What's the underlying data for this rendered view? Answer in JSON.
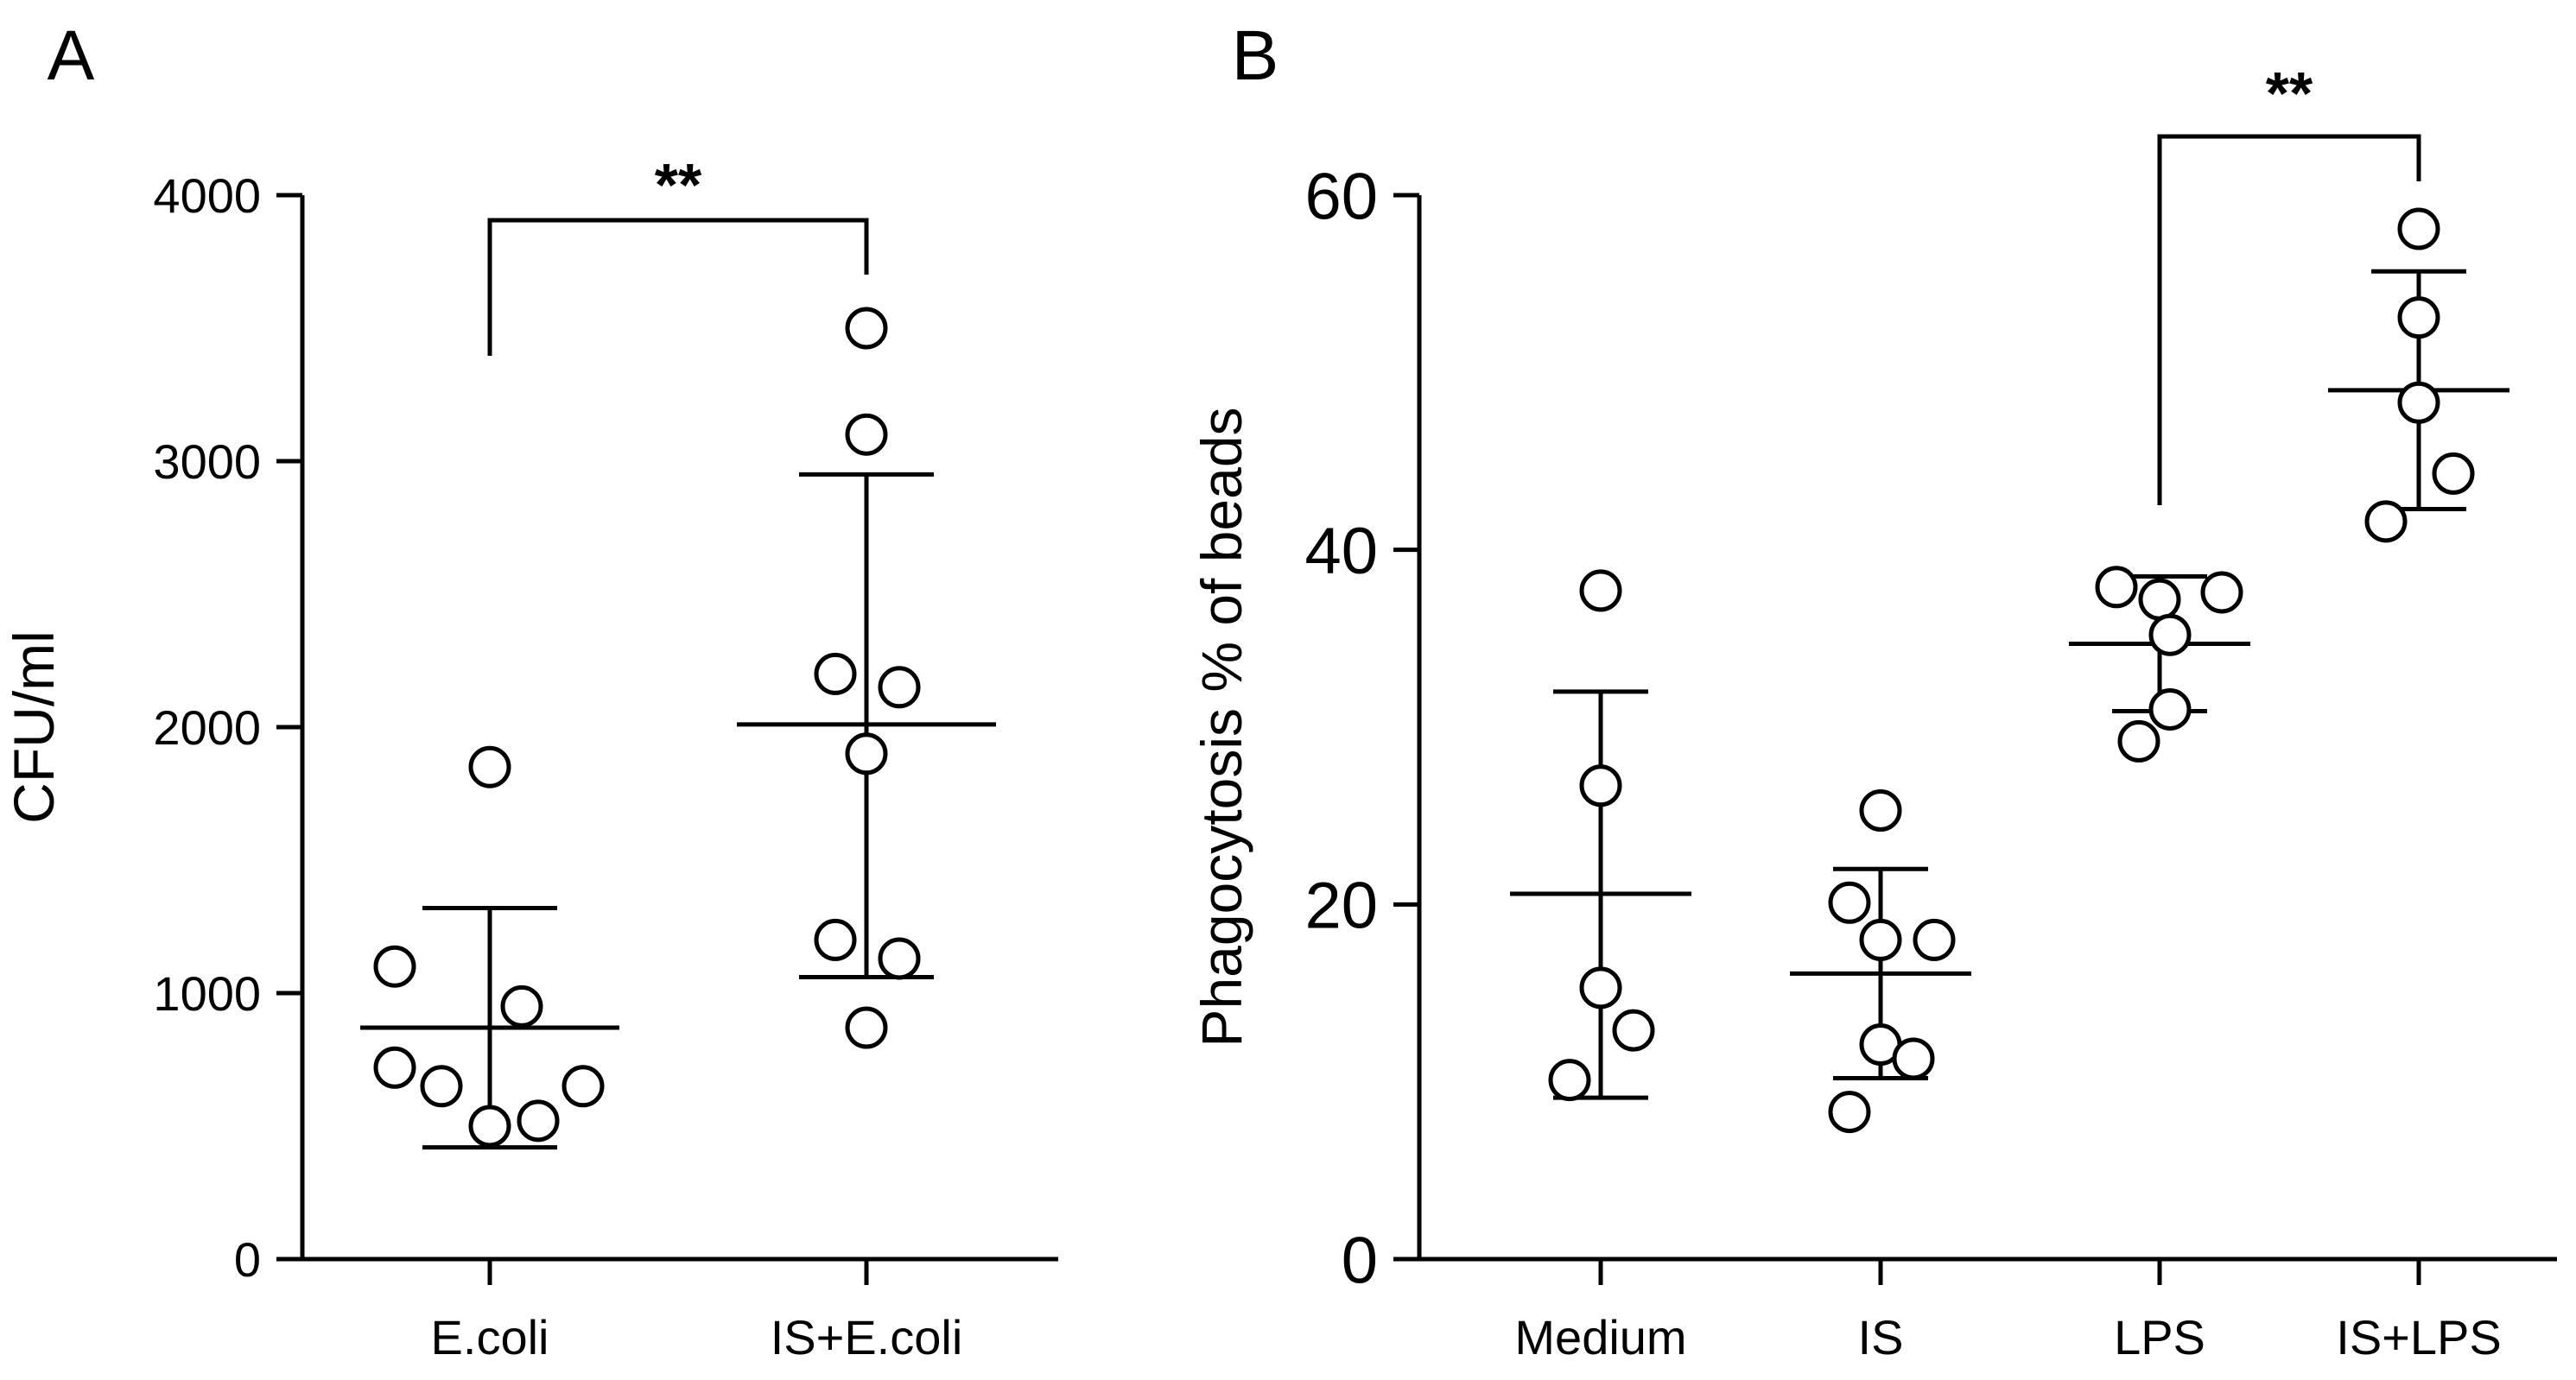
{
  "chart_data": [
    {
      "type": "scatter",
      "panel_label": "A",
      "title": "",
      "xlabel": "",
      "ylabel": "CFU/ml",
      "ylim": [
        0,
        4000
      ],
      "yticks": [
        "0",
        "1000",
        "2000",
        "3000",
        "4000"
      ],
      "grid": false,
      "categories": [
        "E.coli",
        "IS+E.coli"
      ],
      "groups": [
        {
          "name": "E.coli",
          "points": [
            1850,
            1100,
            950,
            720,
            650,
            650,
            500,
            520
          ],
          "mean": 870,
          "sd_low": 420,
          "sd_high": 1320
        },
        {
          "name": "IS+E.coli",
          "points": [
            3500,
            3100,
            2200,
            2150,
            1900,
            1200,
            1130,
            870
          ],
          "mean": 2010,
          "sd_low": 1060,
          "sd_high": 2950
        }
      ],
      "significance": [
        {
          "from": "E.coli",
          "to": "IS+E.coli",
          "label": "**"
        }
      ]
    },
    {
      "type": "scatter",
      "panel_label": "B",
      "title": "",
      "xlabel": "",
      "ylabel": "Phagocytosis % of beads",
      "ylim": [
        0,
        60
      ],
      "yticks": [
        "0",
        "20",
        "40",
        "60"
      ],
      "grid": false,
      "categories": [
        "Medium",
        "IS",
        "LPS",
        "IS+LPS"
      ],
      "groups": [
        {
          "name": "Medium",
          "points": [
            37.7,
            26.7,
            15.3,
            12.9,
            10.1
          ],
          "mean": 20.6,
          "sd_low": 9.1,
          "sd_high": 32.0
        },
        {
          "name": "IS",
          "points": [
            25.3,
            20.1,
            18.0,
            18.0,
            12.1,
            11.3,
            8.3
          ],
          "mean": 16.1,
          "sd_low": 10.2,
          "sd_high": 22.0
        },
        {
          "name": "LPS",
          "points": [
            37.9,
            37.2,
            37.6,
            35.2,
            31.0,
            29.2
          ],
          "mean": 34.7,
          "sd_low": 30.9,
          "sd_high": 38.5
        },
        {
          "name": "IS+LPS",
          "points": [
            58.1,
            53.1,
            48.3,
            44.3,
            41.6
          ],
          "mean": 49.0,
          "sd_low": 42.3,
          "sd_high": 55.7
        }
      ],
      "significance": [
        {
          "from": "LPS",
          "to": "IS+LPS",
          "label": "**"
        }
      ]
    }
  ]
}
